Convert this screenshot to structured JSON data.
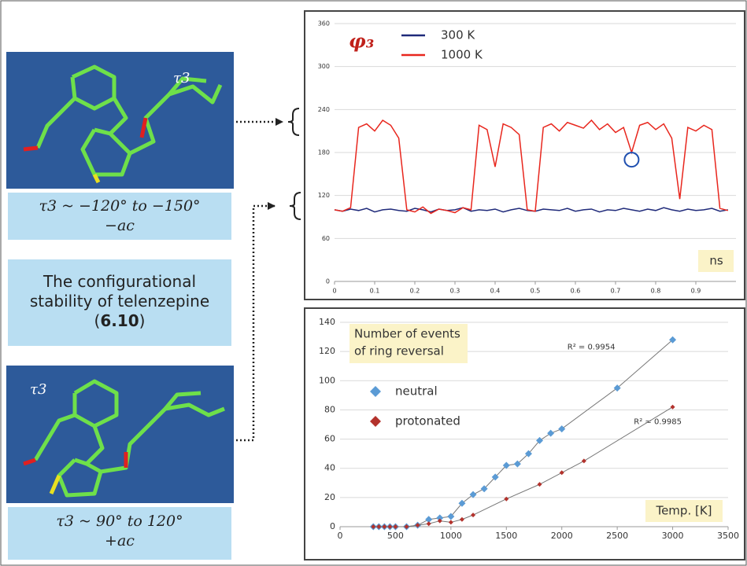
{
  "labels": {
    "top_caption": "τ3 ~ −120° to −150°",
    "top_sub": "−ac",
    "middle_parts": [
      "The configurational stability of telenzepine (",
      "6.10",
      ")"
    ],
    "bottom_caption": "τ3 ~ 90° to 120°",
    "bottom_sub": "+ac",
    "molecule_label": "τ3"
  },
  "chart_data": [
    {
      "type": "line",
      "title": "φ₃",
      "x_label": "ns",
      "x": [
        0,
        0.02,
        0.04,
        0.06,
        0.08,
        0.1,
        0.12,
        0.14,
        0.16,
        0.18,
        0.2,
        0.22,
        0.24,
        0.26,
        0.28,
        0.3,
        0.32,
        0.34,
        0.36,
        0.38,
        0.4,
        0.42,
        0.44,
        0.46,
        0.48,
        0.5,
        0.52,
        0.54,
        0.56,
        0.58,
        0.6,
        0.62,
        0.64,
        0.66,
        0.68,
        0.7,
        0.72,
        0.74,
        0.76,
        0.78,
        0.8,
        0.82,
        0.84,
        0.86,
        0.88,
        0.9,
        0.92,
        0.94,
        0.96,
        0.98
      ],
      "series": [
        {
          "name": "300 K",
          "color": "#1f2a7a",
          "values": [
            100,
            98,
            101,
            99,
            102,
            97,
            100,
            101,
            99,
            98,
            102,
            100,
            97,
            101,
            99,
            100,
            103,
            98,
            100,
            99,
            101,
            97,
            100,
            102,
            99,
            98,
            101,
            100,
            99,
            102,
            98,
            100,
            101,
            97,
            100,
            99,
            102,
            100,
            98,
            101,
            99,
            103,
            100,
            98,
            101,
            99,
            100,
            102,
            98,
            100
          ]
        },
        {
          "name": "1000 K",
          "color": "#e8261d",
          "values": [
            100,
            98,
            103,
            215,
            220,
            210,
            225,
            218,
            200,
            100,
            97,
            104,
            95,
            101,
            99,
            96,
            103,
            100,
            218,
            212,
            160,
            220,
            215,
            205,
            100,
            98,
            215,
            220,
            210,
            222,
            218,
            214,
            225,
            212,
            220,
            208,
            215,
            180,
            218,
            222,
            212,
            220,
            200,
            115,
            215,
            210,
            218,
            212,
            102,
            99
          ]
        }
      ],
      "xlim": [
        0,
        1
      ],
      "xticks": [
        0,
        0.1,
        0.2,
        0.3,
        0.4,
        0.5,
        0.6,
        0.7,
        0.8,
        0.9
      ],
      "ylim": [
        0,
        360
      ],
      "yticks": [
        0,
        60,
        120,
        180,
        240,
        300,
        360
      ],
      "grid": true,
      "legend": "upper center"
    },
    {
      "type": "scatter",
      "title": [
        "Number of events",
        "of ring reversal"
      ],
      "x_label": "Temp. [K]",
      "series": [
        {
          "name": "neutral",
          "color": "#5b9bd5",
          "x": [
            300,
            350,
            400,
            450,
            500,
            600,
            700,
            800,
            900,
            1000,
            1100,
            1200,
            1300,
            1400,
            1500,
            1600,
            1700,
            1800,
            1900,
            2000,
            2500,
            3000
          ],
          "values": [
            0,
            0,
            0,
            0,
            0,
            0,
            1,
            5,
            6,
            7,
            16,
            22,
            26,
            34,
            42,
            43,
            50,
            59,
            64,
            67,
            95,
            128
          ]
        },
        {
          "name": "protonated",
          "color": "#b3322c",
          "x": [
            300,
            350,
            400,
            450,
            500,
            600,
            700,
            800,
            900,
            1000,
            1100,
            1200,
            1500,
            1800,
            2000,
            2200,
            3000
          ],
          "values": [
            0,
            0,
            0,
            0,
            0,
            0,
            1,
            2,
            4,
            3,
            5,
            8,
            19,
            29,
            37,
            45,
            82
          ]
        }
      ],
      "annotations": [
        "R² = 0.9954",
        "R² = 0.9985"
      ],
      "xlim": [
        0,
        3500
      ],
      "xticks": [
        0,
        500,
        1000,
        1500,
        2000,
        2500,
        3000,
        3500
      ],
      "ylim": [
        0,
        140
      ],
      "yticks": [
        0,
        20,
        40,
        60,
        80,
        100,
        120,
        140
      ],
      "grid": true,
      "legend": "upper left",
      "trendline": true
    }
  ]
}
